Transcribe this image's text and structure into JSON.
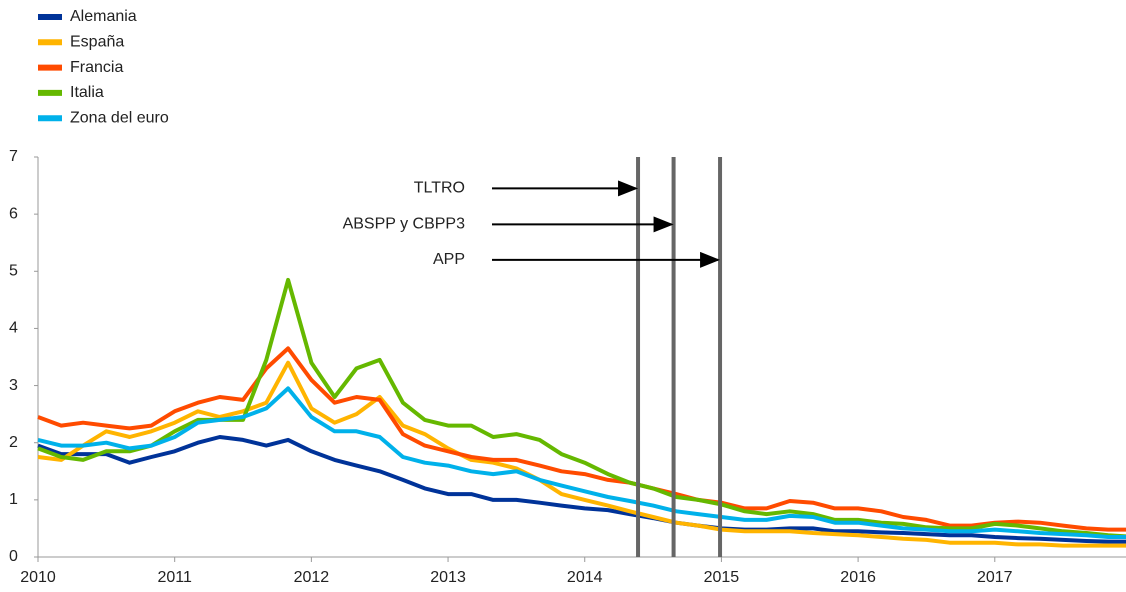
{
  "chart_data": {
    "type": "line",
    "x": [
      2010,
      2010.17,
      2010.33,
      2010.5,
      2010.67,
      2010.83,
      2011,
      2011.17,
      2011.33,
      2011.5,
      2011.67,
      2011.83,
      2012,
      2012.17,
      2012.33,
      2012.5,
      2012.67,
      2012.83,
      2013,
      2013.17,
      2013.33,
      2013.5,
      2013.67,
      2013.83,
      2014,
      2014.17,
      2014.33,
      2014.5,
      2014.67,
      2014.83,
      2015,
      2015.17,
      2015.33,
      2015.5,
      2015.67,
      2015.83,
      2016,
      2016.17,
      2016.33,
      2016.5,
      2016.67,
      2016.83,
      2017,
      2017.17,
      2017.33,
      2017.5,
      2017.67,
      2017.83,
      2017.96
    ],
    "series": [
      {
        "name": "Alemania",
        "color": "#003399",
        "values": [
          1.95,
          1.8,
          1.8,
          1.8,
          1.65,
          1.75,
          1.85,
          2.0,
          2.1,
          2.05,
          1.95,
          2.05,
          1.85,
          1.7,
          1.6,
          1.5,
          1.35,
          1.2,
          1.1,
          1.1,
          1.0,
          1.0,
          0.95,
          0.9,
          0.85,
          0.82,
          0.75,
          0.68,
          0.6,
          0.55,
          0.5,
          0.48,
          0.48,
          0.5,
          0.5,
          0.45,
          0.45,
          0.43,
          0.42,
          0.4,
          0.38,
          0.38,
          0.35,
          0.33,
          0.32,
          0.3,
          0.28,
          0.27,
          0.27
        ]
      },
      {
        "name": "España",
        "color": "#ffb400",
        "values": [
          1.75,
          1.7,
          1.95,
          2.2,
          2.1,
          2.2,
          2.35,
          2.55,
          2.45,
          2.55,
          2.7,
          3.4,
          2.6,
          2.35,
          2.5,
          2.8,
          2.3,
          2.15,
          1.9,
          1.7,
          1.65,
          1.55,
          1.35,
          1.1,
          1.0,
          0.9,
          0.8,
          0.7,
          0.6,
          0.55,
          0.48,
          0.45,
          0.45,
          0.45,
          0.42,
          0.4,
          0.38,
          0.35,
          0.32,
          0.3,
          0.25,
          0.25,
          0.25,
          0.22,
          0.22,
          0.2,
          0.2,
          0.2,
          0.2
        ]
      },
      {
        "name": "Francia",
        "color": "#ff4b00",
        "values": [
          2.45,
          2.3,
          2.35,
          2.3,
          2.25,
          2.3,
          2.55,
          2.7,
          2.8,
          2.75,
          3.3,
          3.65,
          3.1,
          2.7,
          2.8,
          2.75,
          2.15,
          1.95,
          1.85,
          1.75,
          1.7,
          1.7,
          1.6,
          1.5,
          1.45,
          1.35,
          1.3,
          1.2,
          1.1,
          1.0,
          0.95,
          0.85,
          0.85,
          0.98,
          0.95,
          0.85,
          0.85,
          0.8,
          0.7,
          0.65,
          0.55,
          0.55,
          0.6,
          0.62,
          0.6,
          0.55,
          0.5,
          0.48,
          0.48
        ]
      },
      {
        "name": "Italia",
        "color": "#65b800",
        "values": [
          1.9,
          1.75,
          1.7,
          1.85,
          1.85,
          1.95,
          2.2,
          2.4,
          2.4,
          2.4,
          3.45,
          4.85,
          3.4,
          2.8,
          3.3,
          3.45,
          2.7,
          2.4,
          2.3,
          2.3,
          2.1,
          2.15,
          2.05,
          1.8,
          1.65,
          1.45,
          1.3,
          1.2,
          1.05,
          1.0,
          0.92,
          0.8,
          0.75,
          0.8,
          0.75,
          0.65,
          0.65,
          0.6,
          0.58,
          0.52,
          0.5,
          0.5,
          0.58,
          0.55,
          0.5,
          0.45,
          0.42,
          0.38,
          0.36
        ]
      },
      {
        "name": "Zona del euro",
        "color": "#00b1ea",
        "values": [
          2.05,
          1.95,
          1.95,
          2.0,
          1.9,
          1.95,
          2.1,
          2.35,
          2.4,
          2.45,
          2.6,
          2.95,
          2.45,
          2.2,
          2.2,
          2.1,
          1.75,
          1.65,
          1.6,
          1.5,
          1.45,
          1.5,
          1.35,
          1.25,
          1.15,
          1.05,
          0.98,
          0.9,
          0.8,
          0.75,
          0.7,
          0.65,
          0.65,
          0.72,
          0.7,
          0.6,
          0.6,
          0.55,
          0.5,
          0.48,
          0.45,
          0.45,
          0.48,
          0.45,
          0.42,
          0.4,
          0.38,
          0.35,
          0.35
        ]
      }
    ],
    "annotations": [
      {
        "text": "TLTRO",
        "x": 2014.39,
        "y": 6.45
      },
      {
        "text": "ABSPP y CBPP3",
        "x": 2014.65,
        "y": 5.82
      },
      {
        "text": "APP",
        "x": 2014.99,
        "y": 5.2
      }
    ],
    "xlim": [
      2010,
      2017.96
    ],
    "xticks": [
      2010,
      2011,
      2012,
      2013,
      2014,
      2015,
      2016,
      2017
    ],
    "ylim": [
      0,
      7
    ],
    "yticks": [
      0,
      1,
      2,
      3,
      4,
      5,
      6,
      7
    ]
  }
}
